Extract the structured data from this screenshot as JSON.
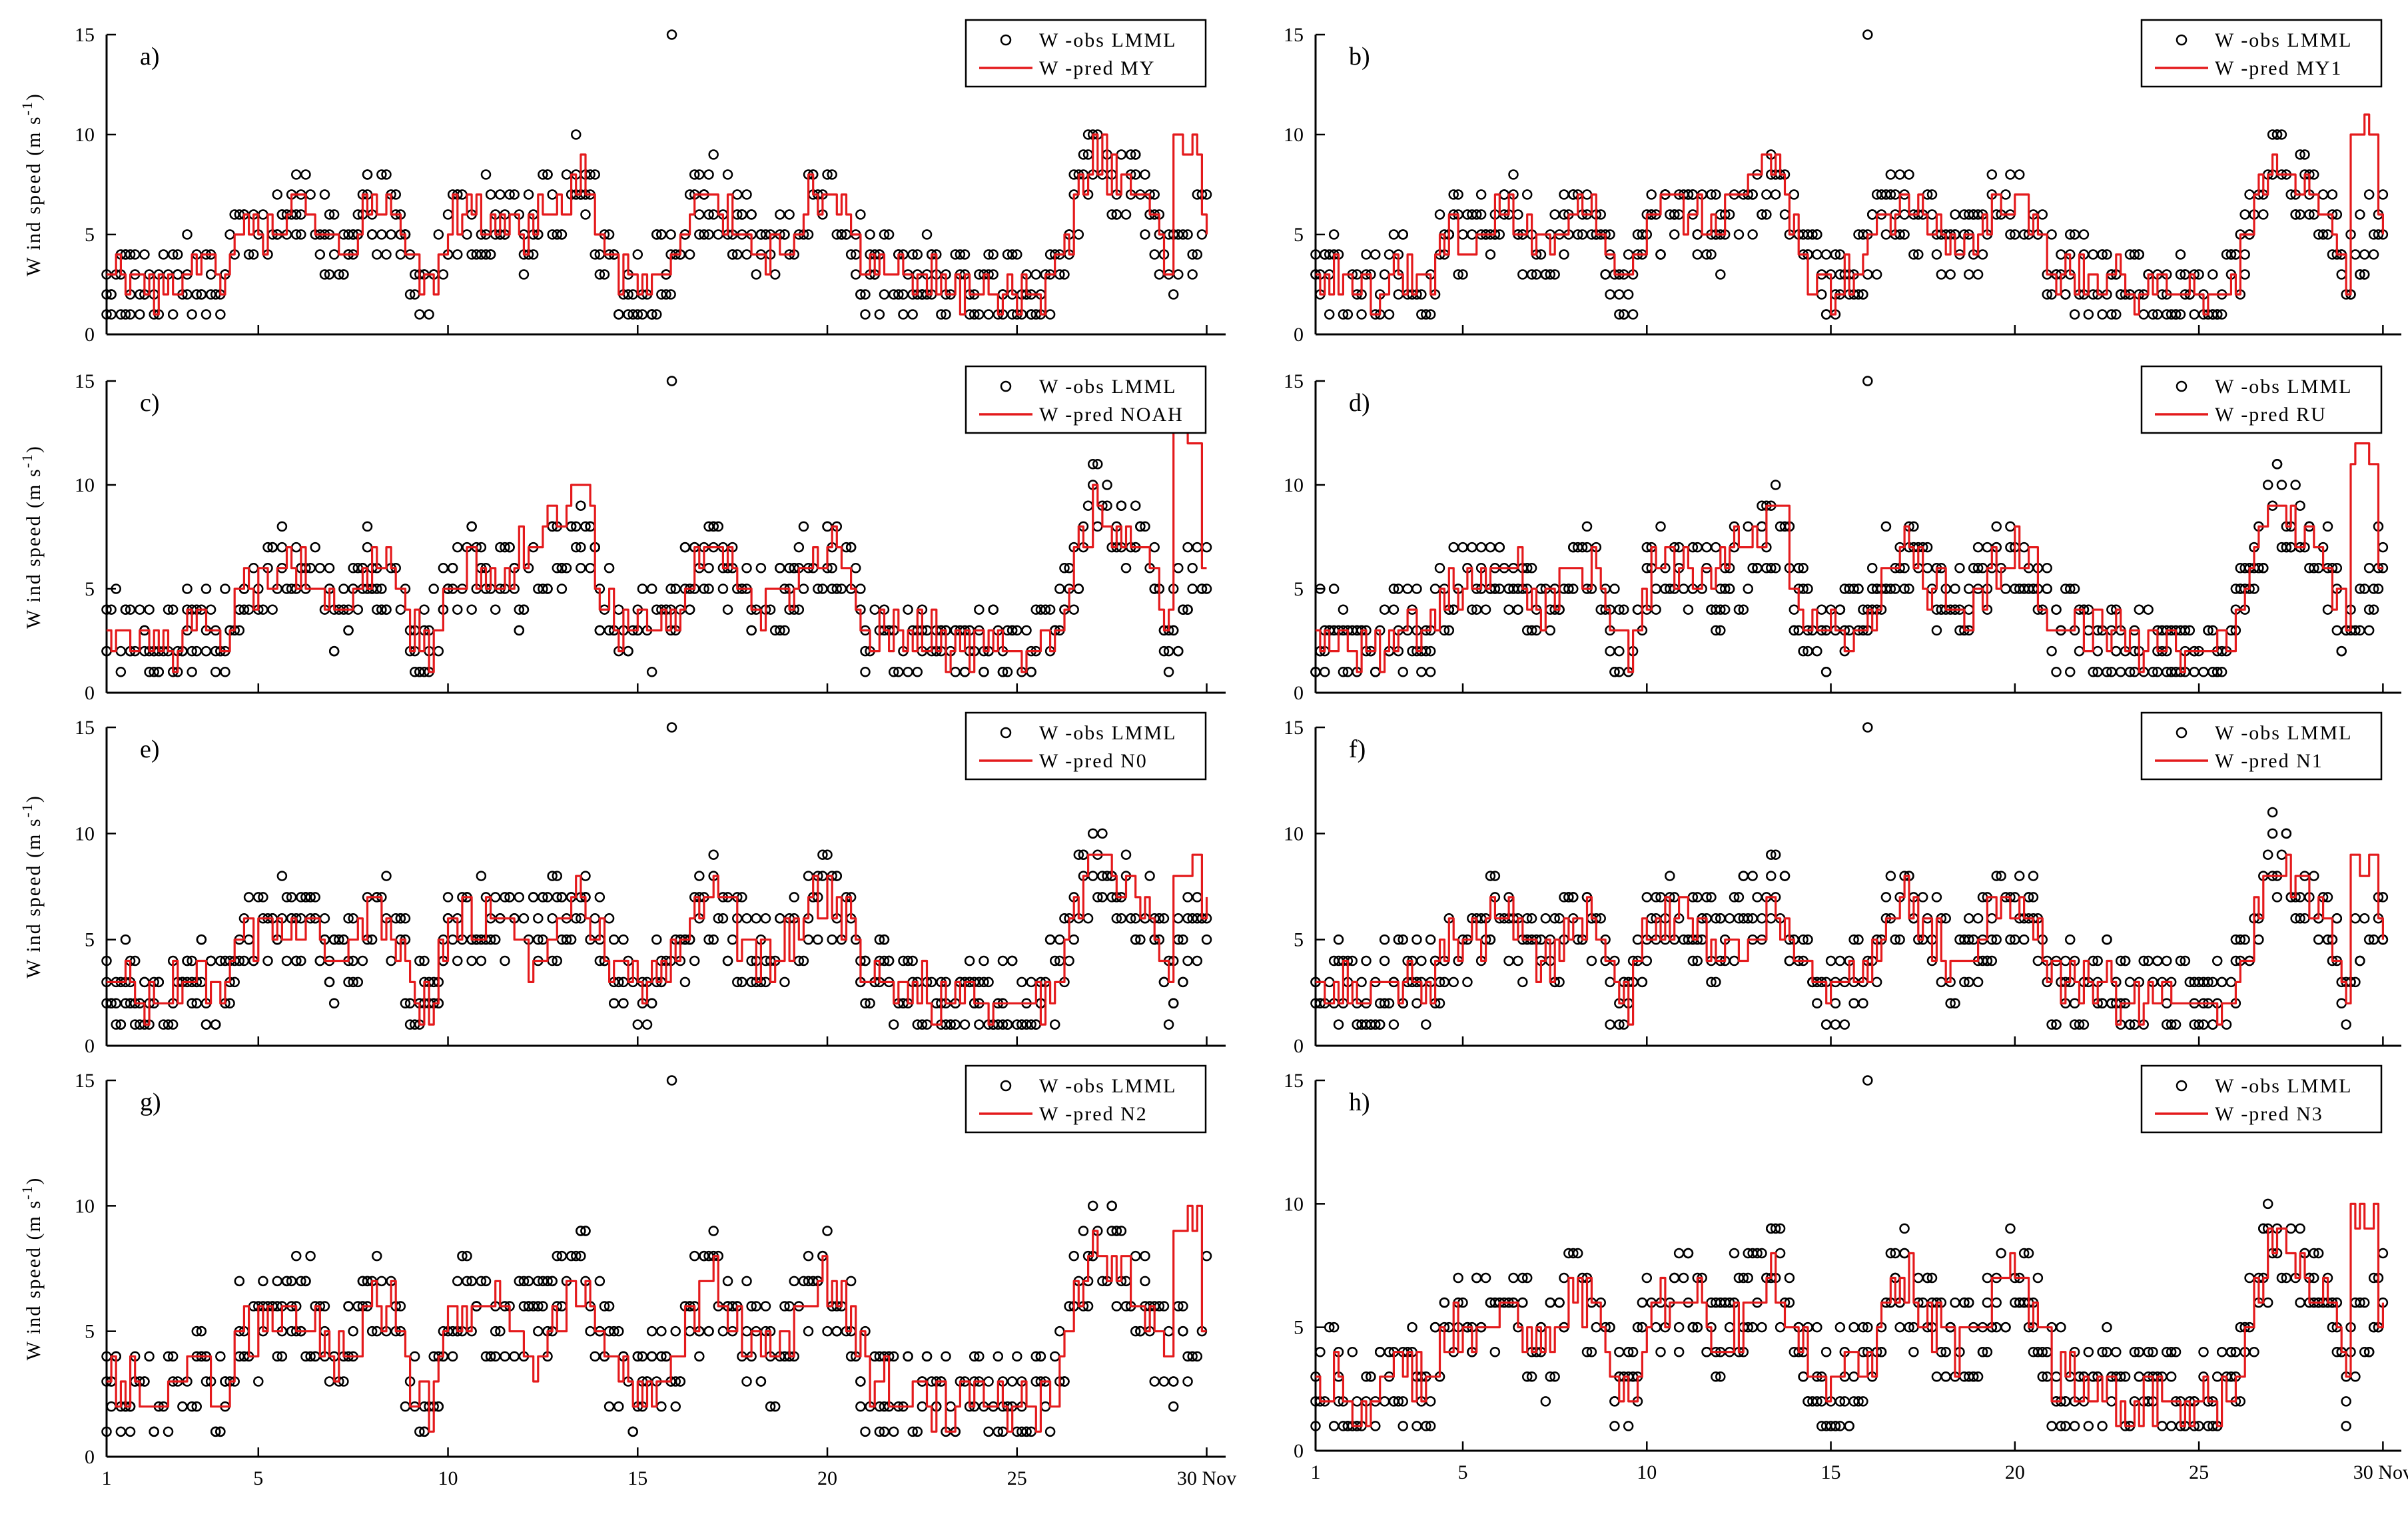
{
  "figure": {
    "obs_color": "#000000",
    "pred_color": "#e41a1c",
    "ylabel_text": "W ind speed (m s",
    "ylabel_exp": "-1",
    "ylabel_close": ")",
    "month_label": "Nov"
  },
  "chart_data": [
    {
      "type": "line",
      "panel": "a)",
      "legend_obs": "W -obs LMML",
      "legend_pred": "W -pred MY",
      "xlim": [
        1,
        30.5
      ],
      "ylim": [
        0,
        15
      ],
      "xticks": [
        1,
        5,
        10,
        15,
        20,
        25,
        30
      ],
      "yticks": [
        0,
        5,
        10,
        15
      ],
      "show_xticklabels": false,
      "show_ylabel": true,
      "outlier_obs": [
        15.9,
        15
      ],
      "extra_peak": 0,
      "series": [
        {
          "name": "W -obs LMML",
          "kind": "markers"
        },
        {
          "name": "W -pred MY",
          "kind": "line",
          "peak": 10,
          "lows": [
            0,
            0
          ]
        }
      ]
    },
    {
      "type": "line",
      "panel": "b)",
      "legend_obs": "W -obs LMML",
      "legend_pred": "W -pred MY1",
      "xlim": [
        1,
        30.5
      ],
      "ylim": [
        0,
        15
      ],
      "xticks": [
        1,
        5,
        10,
        15,
        20,
        25,
        30
      ],
      "yticks": [
        0,
        5,
        10,
        15
      ],
      "show_xticklabels": false,
      "show_ylabel": false,
      "outlier_obs": [
        16,
        15
      ],
      "extra_peak": 1,
      "series": [
        {
          "name": "W -obs LMML",
          "kind": "markers"
        },
        {
          "name": "W -pred MY1",
          "kind": "line",
          "peak": 11,
          "lows": [
            0,
            0
          ]
        }
      ]
    },
    {
      "type": "line",
      "panel": "c)",
      "legend_obs": "W -obs LMML",
      "legend_pred": "W -pred NOAH",
      "xlim": [
        1,
        30.5
      ],
      "ylim": [
        0,
        15
      ],
      "xticks": [
        1,
        5,
        10,
        15,
        20,
        25,
        30
      ],
      "yticks": [
        0,
        5,
        10,
        15
      ],
      "show_xticklabels": false,
      "show_ylabel": true,
      "outlier_obs": [
        15.9,
        15
      ],
      "extra_peak": 2,
      "series": [
        {
          "name": "W -obs LMML",
          "kind": "markers"
        },
        {
          "name": "W -pred NOAH",
          "kind": "line",
          "peak": 13,
          "lows": [
            0,
            0
          ]
        }
      ]
    },
    {
      "type": "line",
      "panel": "d)",
      "legend_obs": "W -obs LMML",
      "legend_pred": "W -pred RU",
      "xlim": [
        1,
        30.5
      ],
      "ylim": [
        0,
        15
      ],
      "xticks": [
        1,
        5,
        10,
        15,
        20,
        25,
        30
      ],
      "yticks": [
        0,
        5,
        10,
        15
      ],
      "show_xticklabels": false,
      "show_ylabel": false,
      "outlier_obs": [
        16,
        15
      ],
      "extra_peak": 1.5,
      "series": [
        {
          "name": "W -obs LMML",
          "kind": "markers"
        },
        {
          "name": "W -pred RU",
          "kind": "line",
          "peak": 12,
          "lows": [
            0,
            0
          ]
        }
      ]
    },
    {
      "type": "line",
      "panel": "e)",
      "legend_obs": "W -obs LMML",
      "legend_pred": "W -pred N0",
      "xlim": [
        1,
        30.5
      ],
      "ylim": [
        0,
        15
      ],
      "xticks": [
        1,
        5,
        10,
        15,
        20,
        25,
        30
      ],
      "yticks": [
        0,
        5,
        10,
        15
      ],
      "show_xticklabels": false,
      "show_ylabel": true,
      "outlier_obs": [
        15.9,
        15
      ],
      "extra_peak": -1,
      "series": [
        {
          "name": "W -obs LMML",
          "kind": "markers"
        },
        {
          "name": "W -pred N0",
          "kind": "line",
          "peak": 9,
          "lows": [
            0,
            0
          ]
        }
      ]
    },
    {
      "type": "line",
      "panel": "f)",
      "legend_obs": "W -obs LMML",
      "legend_pred": "W -pred N1",
      "xlim": [
        1,
        30.5
      ],
      "ylim": [
        0,
        15
      ],
      "xticks": [
        1,
        5,
        10,
        15,
        20,
        25,
        30
      ],
      "yticks": [
        0,
        5,
        10,
        15
      ],
      "show_xticklabels": false,
      "show_ylabel": false,
      "outlier_obs": [
        16,
        15
      ],
      "extra_peak": -1,
      "series": [
        {
          "name": "W -obs LMML",
          "kind": "markers"
        },
        {
          "name": "W -pred N1",
          "kind": "line",
          "peak": 9,
          "lows": [
            0,
            0
          ]
        }
      ]
    },
    {
      "type": "line",
      "panel": "g)",
      "legend_obs": "W -obs LMML",
      "legend_pred": "W -pred N2",
      "xlim": [
        1,
        30.5
      ],
      "ylim": [
        0,
        15
      ],
      "xticks": [
        1,
        5,
        10,
        15,
        20,
        25,
        30
      ],
      "yticks": [
        0,
        5,
        10,
        15
      ],
      "xticklabels": [
        "1",
        "5",
        "10",
        "15",
        "20",
        "25",
        "30 Nov"
      ],
      "show_xticklabels": true,
      "show_ylabel": true,
      "outlier_obs": [
        15.9,
        15
      ],
      "extra_peak": -1,
      "series": [
        {
          "name": "W -obs LMML",
          "kind": "markers"
        },
        {
          "name": "W -pred N2",
          "kind": "line",
          "peak": 10,
          "lows": [
            0,
            0
          ]
        }
      ]
    },
    {
      "type": "line",
      "panel": "h)",
      "legend_obs": "W -obs LMML",
      "legend_pred": "W -pred N3",
      "xlim": [
        1,
        30.5
      ],
      "ylim": [
        0,
        15
      ],
      "xticks": [
        1,
        5,
        10,
        15,
        20,
        25,
        30
      ],
      "yticks": [
        0,
        5,
        10,
        15
      ],
      "xticklabels": [
        "1",
        "5",
        "10",
        "15",
        "20",
        "25",
        "30 Nov"
      ],
      "show_xticklabels": true,
      "show_ylabel": false,
      "outlier_obs": [
        16,
        15
      ],
      "extra_peak": -1,
      "series": [
        {
          "name": "W -obs LMML",
          "kind": "markers"
        },
        {
          "name": "W -pred N3",
          "kind": "line",
          "peak": 10,
          "lows": [
            0,
            0
          ]
        }
      ]
    }
  ]
}
